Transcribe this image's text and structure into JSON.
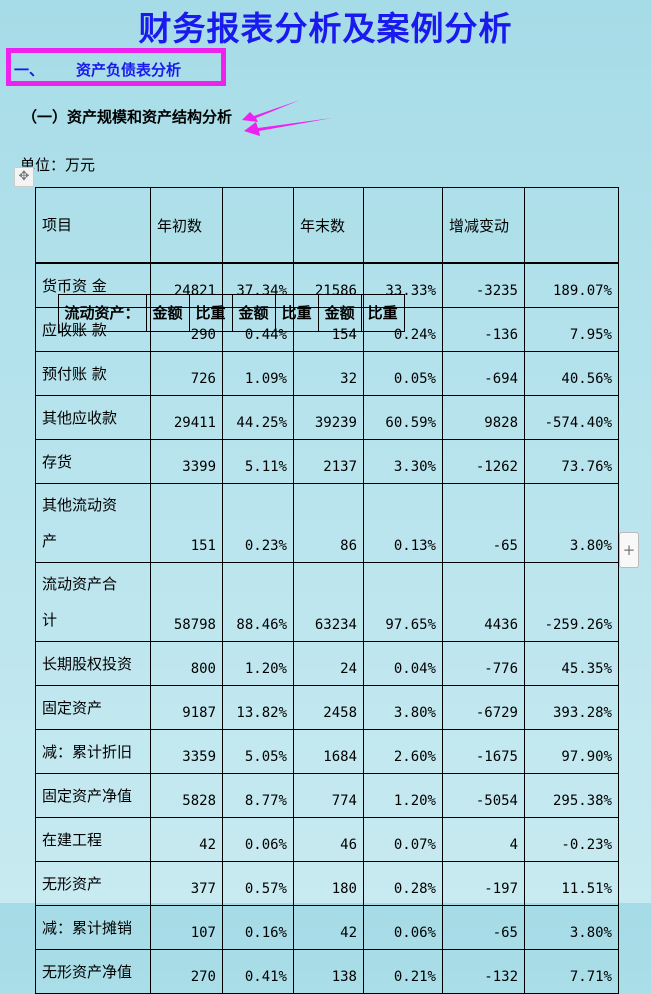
{
  "title": "财务报表分析及案例分析",
  "section": {
    "number": "一、",
    "label": "资产负债表分析"
  },
  "subsection": "（一）资产规模和资产结构分析",
  "unit": "单位：万元",
  "table": {
    "header": [
      "项目",
      "年初数",
      "",
      "年末数",
      "",
      "增减变动",
      ""
    ],
    "subheader": [
      "流动资产：",
      "金额",
      "比重",
      "金额",
      "比重",
      "金额",
      "比重"
    ],
    "rows": [
      [
        "货币资 金",
        "24821",
        "37.34%",
        "21586",
        "33.33%",
        "-3235",
        "189.07%"
      ],
      [
        "应收账 款",
        "290",
        "0.44%",
        "154",
        "0.24%",
        "-136",
        "7.95%"
      ],
      [
        "预付账 款",
        "726",
        "1.09%",
        "32",
        "0.05%",
        "-694",
        "40.56%"
      ],
      [
        "其他应收款",
        "29411",
        "44.25%",
        "39239",
        "60.59%",
        "9828",
        "-574.40%"
      ],
      [
        "存货",
        "3399",
        "5.11%",
        "2137",
        "3.30%",
        "-1262",
        "73.76%"
      ],
      [
        "其他流动资\n产",
        "151",
        "0.23%",
        "86",
        "0.13%",
        "-65",
        "3.80%"
      ],
      [
        "流动资产合\n计",
        "58798",
        "88.46%",
        "63234",
        "97.65%",
        "4436",
        "-259.26%"
      ],
      [
        "长期股权投资",
        "800",
        "1.20%",
        "24",
        "0.04%",
        "-776",
        "45.35%"
      ],
      [
        "固定资产",
        "9187",
        "13.82%",
        "2458",
        "3.80%",
        "-6729",
        "393.28%"
      ],
      [
        "减：累计折旧",
        "3359",
        "5.05%",
        "1684",
        "2.60%",
        "-1675",
        "97.90%"
      ],
      [
        "固定资产净值",
        "5828",
        "8.77%",
        "774",
        "1.20%",
        "-5054",
        "295.38%"
      ],
      [
        "在建工程",
        "42",
        "0.06%",
        "46",
        "0.07%",
        "4",
        "-0.23%"
      ],
      [
        "无形资产",
        "377",
        "0.57%",
        "180",
        "0.28%",
        "-197",
        "11.51%"
      ],
      [
        "减：累计摊销",
        "107",
        "0.16%",
        "42",
        "0.06%",
        "-65",
        "3.80%"
      ],
      [
        "无形资产净值",
        "270",
        "0.41%",
        "138",
        "0.21%",
        "-132",
        "7.71%"
      ]
    ]
  },
  "colors": {
    "title": "#1a1aee",
    "highlight": "#ee22ee"
  },
  "icons": {
    "move_handle": "move-icon",
    "add": "plus-icon"
  }
}
